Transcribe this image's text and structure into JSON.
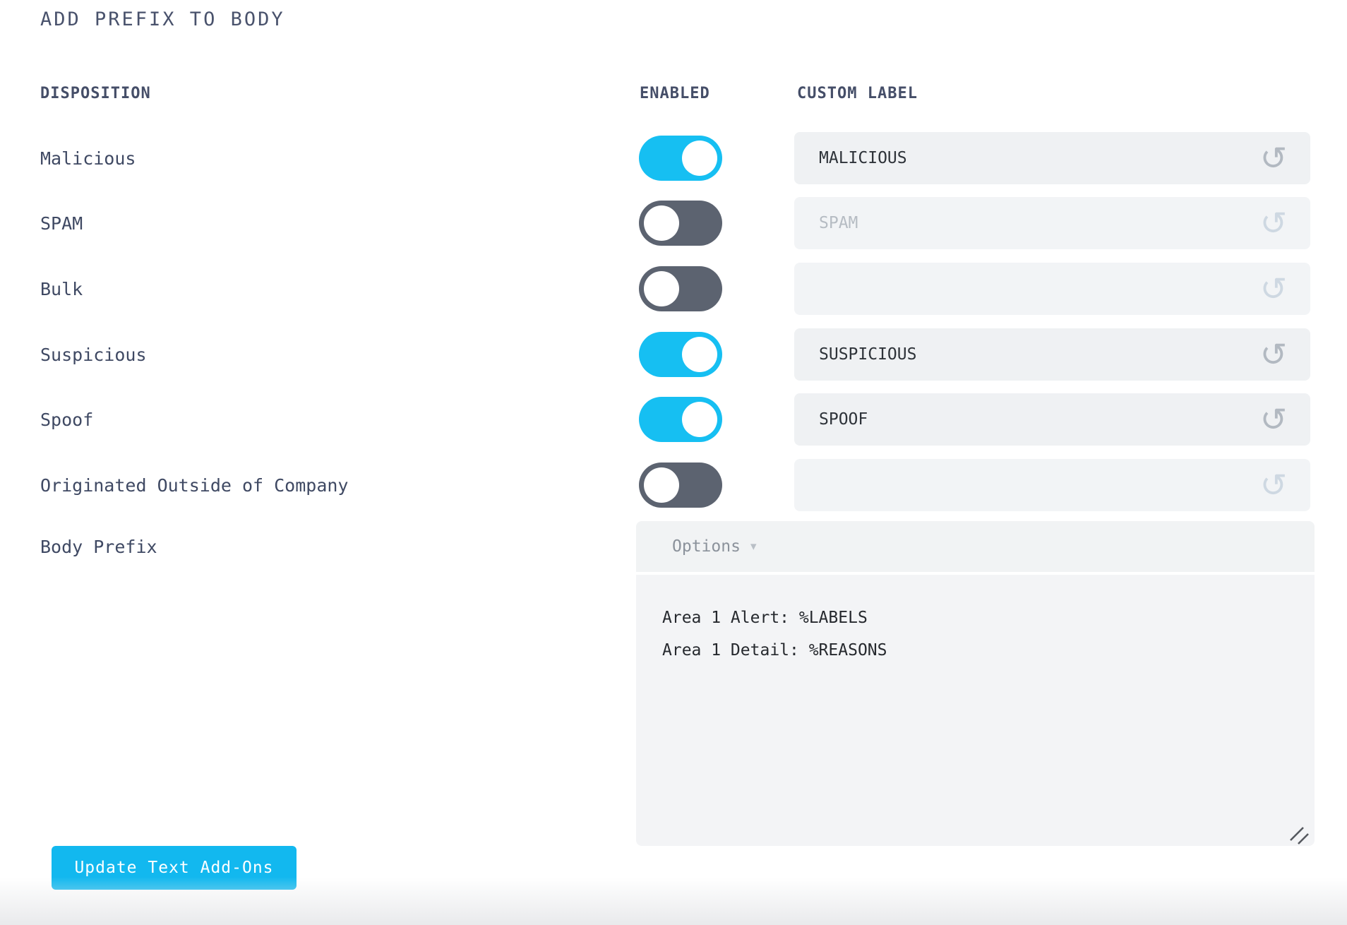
{
  "page": {
    "title": "ADD PREFIX TO BODY"
  },
  "table": {
    "headers": {
      "disposition": "DISPOSITION",
      "enabled": "ENABLED",
      "custom_label": "CUSTOM LABEL"
    },
    "rows": [
      {
        "label": "Malicious",
        "enabled": true,
        "custom_label": "MALICIOUS",
        "placeholder": ""
      },
      {
        "label": "SPAM",
        "enabled": false,
        "custom_label": "",
        "placeholder": "SPAM"
      },
      {
        "label": "Bulk",
        "enabled": false,
        "custom_label": "",
        "placeholder": ""
      },
      {
        "label": "Suspicious",
        "enabled": true,
        "custom_label": "SUSPICIOUS",
        "placeholder": ""
      },
      {
        "label": "Spoof",
        "enabled": true,
        "custom_label": "SPOOF",
        "placeholder": ""
      },
      {
        "label": "Originated Outside of Company",
        "enabled": false,
        "custom_label": "",
        "placeholder": ""
      }
    ]
  },
  "body_prefix": {
    "label": "Body Prefix",
    "options_label": "Options",
    "value": "Area 1 Alert: %LABELS\nArea 1 Detail: %REASONS"
  },
  "actions": {
    "update_button": "Update Text Add-Ons"
  },
  "icons": {
    "reset": "↺",
    "dropdown_caret": "▾"
  },
  "colors": {
    "accent_cyan": "#16bff2",
    "button_cyan": "#12b8ef",
    "toggle_off": "#5c6370",
    "heading_text": "#3f4963",
    "input_bg": "#eff1f3"
  }
}
